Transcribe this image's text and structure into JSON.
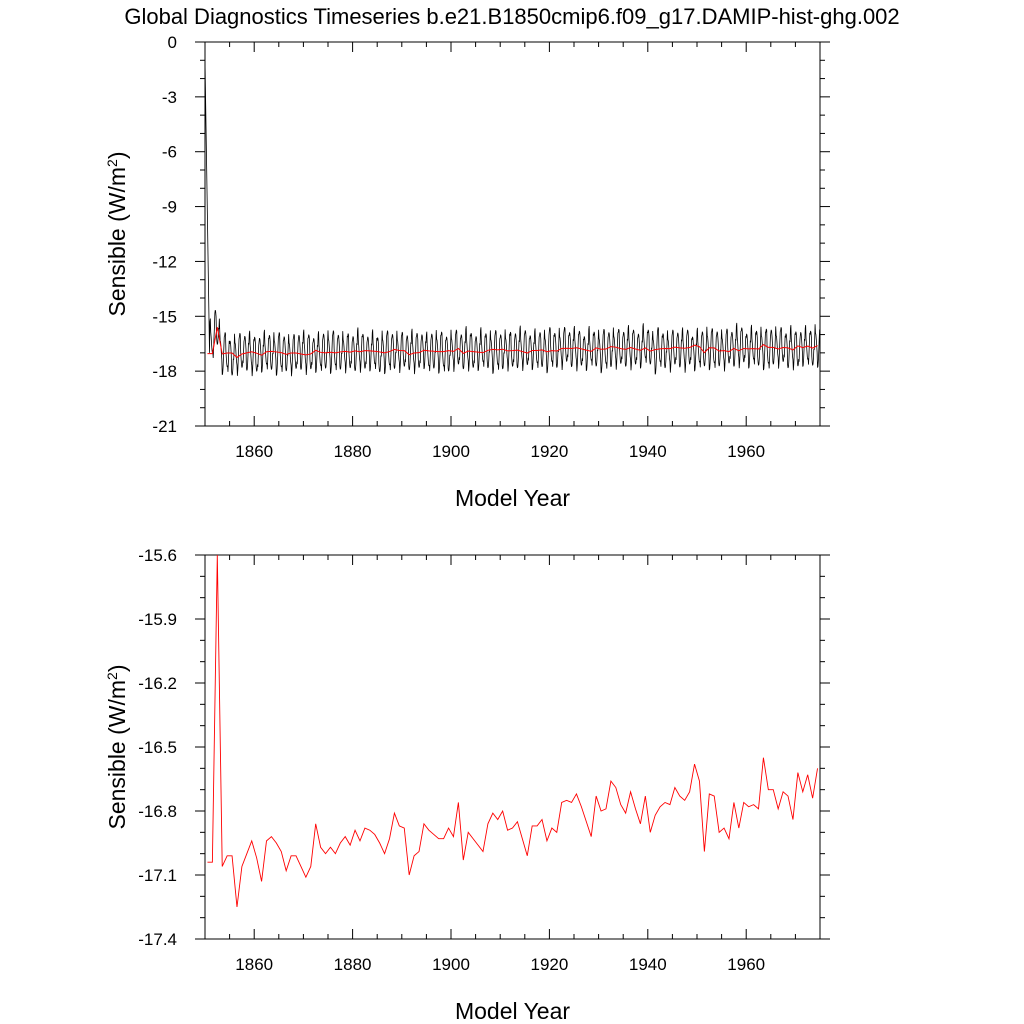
{
  "title": "Global Diagnostics Timeseries b.e21.B1850cmip6.f09_g17.DAMIP-hist-ghg.002",
  "colors": {
    "monthly": "#000000",
    "annual": "#ff0000",
    "axes": "#000000",
    "background": "#ffffff"
  },
  "chart_data": [
    {
      "type": "line",
      "xlabel": "Model Year",
      "ylabel": {
        "main": "Sensible (W/m",
        "sup": "2",
        "close": ")"
      },
      "xlim": [
        1850,
        1975
      ],
      "ylim": [
        -21,
        0
      ],
      "xticks": [
        1860,
        1880,
        1900,
        1920,
        1940,
        1960
      ],
      "yticks": [
        0,
        -3,
        -6,
        -9,
        -12,
        -15,
        -18,
        -21
      ],
      "grid": false,
      "series": [
        {
          "kind": "monthly",
          "color": "#000000",
          "start_year": 1850,
          "points_per_year": 12,
          "annual_means": [
            -12.6,
            -16.3,
            -15.6,
            -17.02,
            -17.0,
            -17.22,
            -17.08,
            -16.98,
            -16.9,
            -17.03,
            -17.13,
            -16.95,
            -16.92,
            -16.97,
            -17.06,
            -17.0,
            -16.99,
            -17.1,
            -17.04,
            -16.85,
            -16.97,
            -17.0,
            -16.96,
            -17.0,
            -16.9,
            -16.96,
            -16.9,
            -16.9,
            -16.94,
            -17.0,
            -16.92,
            -16.85,
            -16.97,
            -16.88,
            -16.9,
            -17.1,
            -16.97,
            -16.9,
            -16.86,
            -16.92,
            -16.92,
            -16.87,
            -16.92,
            -16.92,
            -16.76,
            -17.02,
            -16.9,
            -16.94,
            -16.97,
            -17.0,
            -16.86,
            -16.8,
            -16.82,
            -16.78,
            -16.92,
            -16.86,
            -16.78,
            -16.88,
            -16.96,
            -16.88,
            -16.88,
            -16.84,
            -16.92,
            -16.76,
            -16.75,
            -16.77,
            -16.81,
            -16.84,
            -16.82,
            -16.92,
            -16.72,
            -16.8,
            -16.76,
            -16.65,
            -16.7,
            -16.77,
            -16.8,
            -16.86,
            -16.71,
            -16.79,
            -16.92,
            -16.82,
            -16.76,
            -16.74,
            -16.76,
            -16.68,
            -16.72,
            -16.74,
            -16.72,
            -16.56,
            -16.68,
            -16.99,
            -16.72,
            -16.82,
            -16.9,
            -16.8,
            -16.72,
            -16.85,
            -16.74,
            -16.88,
            -16.81,
            -16.78,
            -16.76,
            -16.78,
            -16.72,
            -16.84,
            -16.74,
            -16.68,
            -16.6,
            -16.62,
            -16.72,
            -16.65,
            -16.74,
            -16.76,
            -16.81,
            -16.62,
            -16.68,
            -16.66,
            -16.76,
            -16.72,
            -16.84,
            -16.63,
            -16.66,
            -16.74,
            -16.62
          ],
          "seasonal_amplitude": 0.95,
          "note_of_shape": "monthly cycle around annual mean; first year starts near 0 and drops"
        },
        {
          "kind": "annual",
          "color": "#ff0000",
          "x": [
            1850,
            1851,
            1852,
            1853,
            1854,
            1855,
            1856,
            1857,
            1858,
            1859,
            1860,
            1861,
            1862,
            1863,
            1864,
            1865,
            1866,
            1867,
            1868,
            1869,
            1870,
            1871,
            1872,
            1873,
            1874,
            1875,
            1876,
            1877,
            1878,
            1879,
            1880,
            1881,
            1882,
            1883,
            1884,
            1885,
            1886,
            1887,
            1888,
            1889,
            1890,
            1891,
            1892,
            1893,
            1894,
            1895,
            1896,
            1897,
            1898,
            1899,
            1900,
            1901,
            1902,
            1903,
            1904,
            1905,
            1906,
            1907,
            1908,
            1909,
            1910,
            1911,
            1912,
            1913,
            1914,
            1915,
            1916,
            1917,
            1918,
            1919,
            1920,
            1921,
            1922,
            1923,
            1924,
            1925,
            1926,
            1927,
            1928,
            1929,
            1930,
            1931,
            1932,
            1933,
            1934,
            1935,
            1936,
            1937,
            1938,
            1939,
            1940,
            1941,
            1942,
            1943,
            1944,
            1945,
            1946,
            1947,
            1948,
            1949,
            1950,
            1951,
            1952,
            1953,
            1954,
            1955,
            1956,
            1957,
            1958,
            1959,
            1960,
            1961,
            1962,
            1963,
            1964,
            1965,
            1966,
            1967,
            1968,
            1969,
            1970,
            1971,
            1972,
            1973,
            1974
          ],
          "values": [
            -17.04,
            -17.04,
            -15.6,
            -17.06,
            -17.01,
            -17.01,
            -17.25,
            -17.06,
            -17.0,
            -16.94,
            -17.02,
            -17.13,
            -16.94,
            -16.92,
            -16.95,
            -16.99,
            -17.08,
            -17.01,
            -17.01,
            -17.06,
            -17.11,
            -17.06,
            -16.86,
            -16.97,
            -17.0,
            -16.97,
            -17.0,
            -16.95,
            -16.92,
            -16.96,
            -16.89,
            -16.94,
            -16.88,
            -16.89,
            -16.91,
            -16.95,
            -17.0,
            -16.93,
            -16.81,
            -16.87,
            -16.88,
            -17.1,
            -17.01,
            -16.99,
            -16.86,
            -16.89,
            -16.91,
            -16.93,
            -16.93,
            -16.88,
            -16.92,
            -16.76,
            -17.03,
            -16.9,
            -16.93,
            -16.96,
            -16.99,
            -16.86,
            -16.81,
            -16.84,
            -16.8,
            -16.89,
            -16.88,
            -16.85,
            -16.93,
            -17.01,
            -16.87,
            -16.87,
            -16.84,
            -16.94,
            -16.88,
            -16.9,
            -16.76,
            -16.75,
            -16.76,
            -16.72,
            -16.78,
            -16.85,
            -16.92,
            -16.73,
            -16.8,
            -16.79,
            -16.66,
            -16.69,
            -16.77,
            -16.81,
            -16.71,
            -16.79,
            -16.86,
            -16.73,
            -16.9,
            -16.82,
            -16.78,
            -16.76,
            -16.77,
            -16.69,
            -16.73,
            -16.75,
            -16.71,
            -16.58,
            -16.66,
            -16.99,
            -16.72,
            -16.73,
            -16.9,
            -16.88,
            -16.93,
            -16.76,
            -16.88,
            -16.76,
            -16.78,
            -16.77,
            -16.79,
            -16.55,
            -16.7,
            -16.7,
            -16.79,
            -16.71,
            -16.73,
            -16.84,
            -16.62,
            -16.71,
            -16.63,
            -16.74,
            -16.6
          ]
        }
      ]
    },
    {
      "type": "line",
      "xlabel": "Model Year",
      "ylabel": {
        "main": "Sensible (W/m",
        "sup": "2",
        "close": ")"
      },
      "xlim": [
        1850,
        1975
      ],
      "ylim": [
        -17.4,
        -15.6
      ],
      "xticks": [
        1860,
        1880,
        1900,
        1920,
        1940,
        1960
      ],
      "yticks": [
        -15.6,
        -15.9,
        -16.2,
        -16.5,
        -16.8,
        -17.1,
        -17.4
      ],
      "ytick_labels": [
        "-15.6",
        "-15.9",
        "-16.2",
        "-16.5",
        "-16.8",
        "-17.1",
        "-17.4"
      ],
      "grid": false,
      "series": [
        {
          "kind": "annual",
          "color": "#ff0000",
          "ref": "same as upper annual series"
        }
      ]
    }
  ]
}
